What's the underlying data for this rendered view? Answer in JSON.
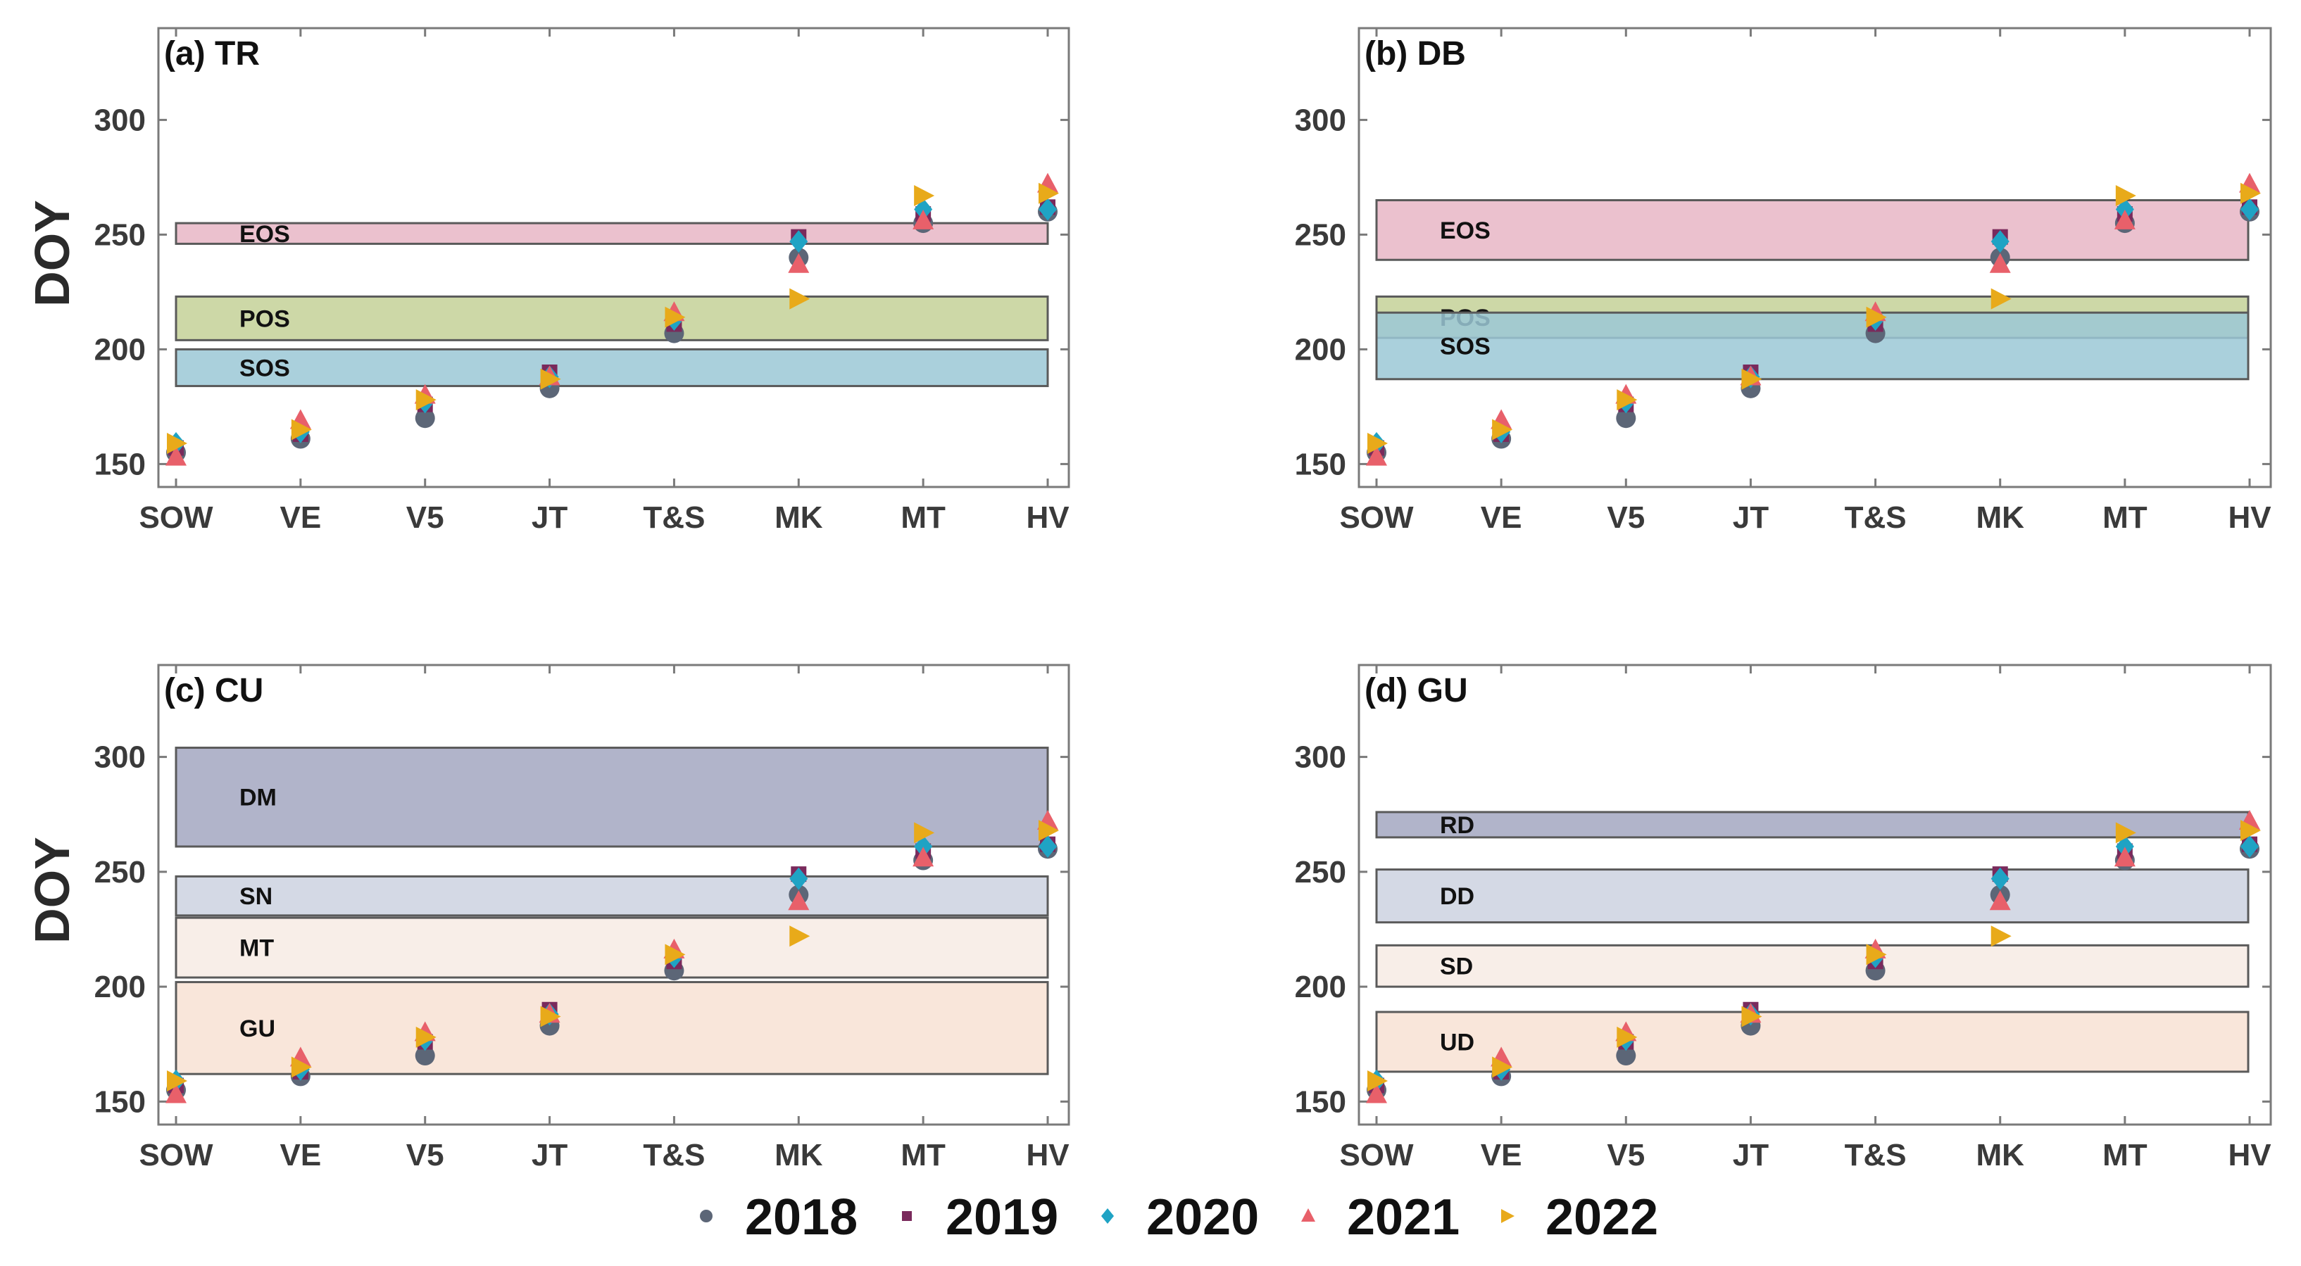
{
  "chart_data": {
    "type": "scatter",
    "ylabel": "DOY",
    "ylim": [
      140,
      340
    ],
    "yticks": [
      "150",
      "200",
      "250",
      "300"
    ],
    "categories": [
      "SOW",
      "VE",
      "V5",
      "JT",
      "T&S",
      "MK",
      "MT",
      "HV"
    ],
    "colors": {
      "2018": "#5c6677",
      "2019": "#7a2a5c",
      "2020": "#1fa3c4",
      "2021": "#e8606a",
      "2022": "#e8aa1a"
    },
    "series": [
      {
        "name": "2018",
        "marker": "circle",
        "values": [
          155,
          161,
          170,
          183,
          207,
          240,
          255,
          260
        ]
      },
      {
        "name": "2019",
        "marker": "square",
        "values": [
          157,
          163,
          176,
          190,
          211,
          249,
          259,
          262
        ]
      },
      {
        "name": "2020",
        "marker": "diamond",
        "values": [
          159,
          164,
          177,
          188,
          213,
          247,
          261,
          261
        ]
      },
      {
        "name": "2021",
        "marker": "triangle-up",
        "values": [
          153,
          169,
          180,
          188,
          216,
          237,
          256,
          272
        ]
      },
      {
        "name": "2022",
        "marker": "triangle-right",
        "values": [
          159,
          165,
          178,
          187,
          214,
          222,
          267,
          268
        ]
      }
    ],
    "legend": [
      "2018",
      "2019",
      "2020",
      "2021",
      "2022"
    ],
    "panels": [
      {
        "title": "(a) TR",
        "bands": [
          {
            "label": "EOS",
            "y0": 246,
            "y1": 255,
            "color": "#e8b6c6"
          },
          {
            "label": "POS",
            "y0": 204,
            "y1": 223,
            "color": "#c4d198"
          },
          {
            "label": "SOS",
            "y0": 184,
            "y1": 200,
            "color": "#9bc8d6"
          }
        ]
      },
      {
        "title": "(b) DB",
        "bands": [
          {
            "label": "EOS",
            "y0": 239,
            "y1": 265,
            "color": "#e8b6c6"
          },
          {
            "label": "POS",
            "y0": 205,
            "y1": 223,
            "color": "#c4d198"
          },
          {
            "label": "SOS",
            "y0": 187,
            "y1": 216,
            "color": "#9bc8d6"
          }
        ]
      },
      {
        "title": "(c) CU",
        "bands": [
          {
            "label": "DM",
            "y0": 261,
            "y1": 304,
            "color": "#a3a7c1"
          },
          {
            "label": "SN",
            "y0": 231,
            "y1": 248,
            "color": "#ccd2e0"
          },
          {
            "label": "MT",
            "y0": 204,
            "y1": 230,
            "color": "#f7ebe4"
          },
          {
            "label": "GU",
            "y0": 162,
            "y1": 202,
            "color": "#f8e2d4"
          }
        ]
      },
      {
        "title": "(d) GU",
        "bands": [
          {
            "label": "RD",
            "y0": 265,
            "y1": 276,
            "color": "#a3a7c1"
          },
          {
            "label": "DD",
            "y0": 228,
            "y1": 251,
            "color": "#ccd2e0"
          },
          {
            "label": "SD",
            "y0": 200,
            "y1": 218,
            "color": "#f7ebe4"
          },
          {
            "label": "UD",
            "y0": 163,
            "y1": 189,
            "color": "#f8e2d4"
          }
        ]
      }
    ]
  }
}
